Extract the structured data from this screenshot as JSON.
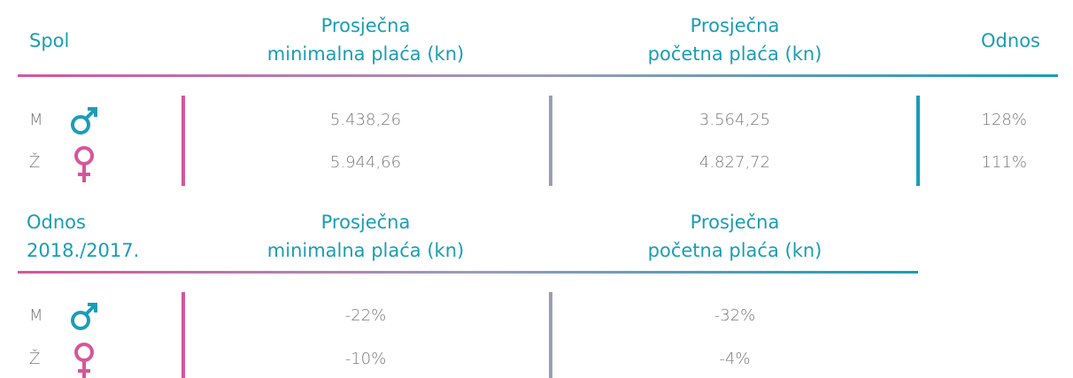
{
  "table1": {
    "header": [
      [
        "Spol"
      ],
      [
        "Prosječna",
        "minimalna plaća (kn)"
      ],
      [
        "Prosječna",
        "početna plaća (kn)"
      ],
      [
        "Odnos"
      ]
    ],
    "rows": [
      [
        "M",
        "5.438,26",
        "3.564,25",
        "128%"
      ],
      [
        "Ž",
        "5.944,66",
        "4.827,72",
        "111%"
      ]
    ]
  },
  "table2": {
    "header": [
      [
        "Odnos",
        "2018./2017."
      ],
      [
        "Prosječna",
        "minimalna plaća (kn)"
      ],
      [
        "Prosječna",
        "početna plaća (kn)"
      ]
    ],
    "rows": [
      [
        "M",
        "-22%",
        "-32%"
      ],
      [
        "Ž",
        "-10%",
        "-4%"
      ]
    ]
  }
}
